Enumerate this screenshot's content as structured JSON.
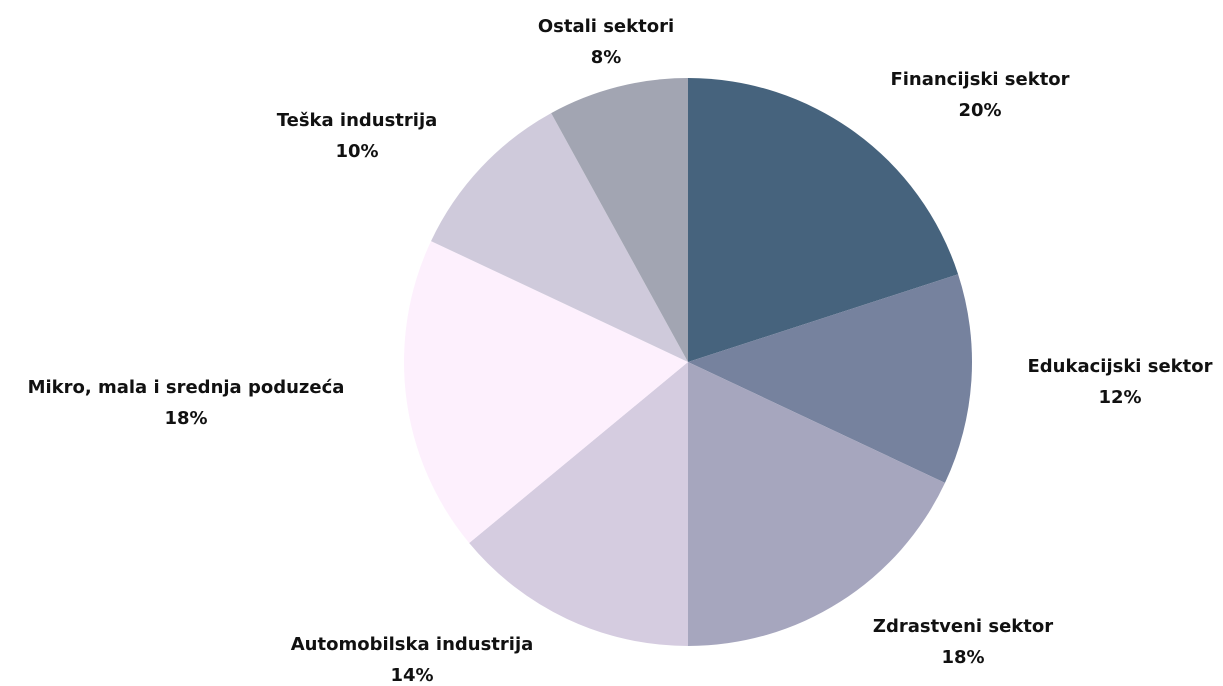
{
  "chart_data": {
    "type": "pie",
    "categories": [
      "Financijski sektor",
      "Edukacijski sektor",
      "Zdrastveni sektor",
      "Automobilska industrija",
      "Mikro, mala i srednja poduzeća",
      "Teška industrija",
      "Ostali sektori"
    ],
    "values": [
      20,
      12,
      18,
      14,
      18,
      10,
      8
    ],
    "value_labels": [
      "20%",
      "12%",
      "18%",
      "14%",
      "18%",
      "10%",
      "8%"
    ],
    "colors": [
      "#46637d",
      "#76829e",
      "#a6a6be",
      "#d5cce0",
      "#fdf0fd",
      "#cfcadb",
      "#a2a5b2"
    ]
  }
}
